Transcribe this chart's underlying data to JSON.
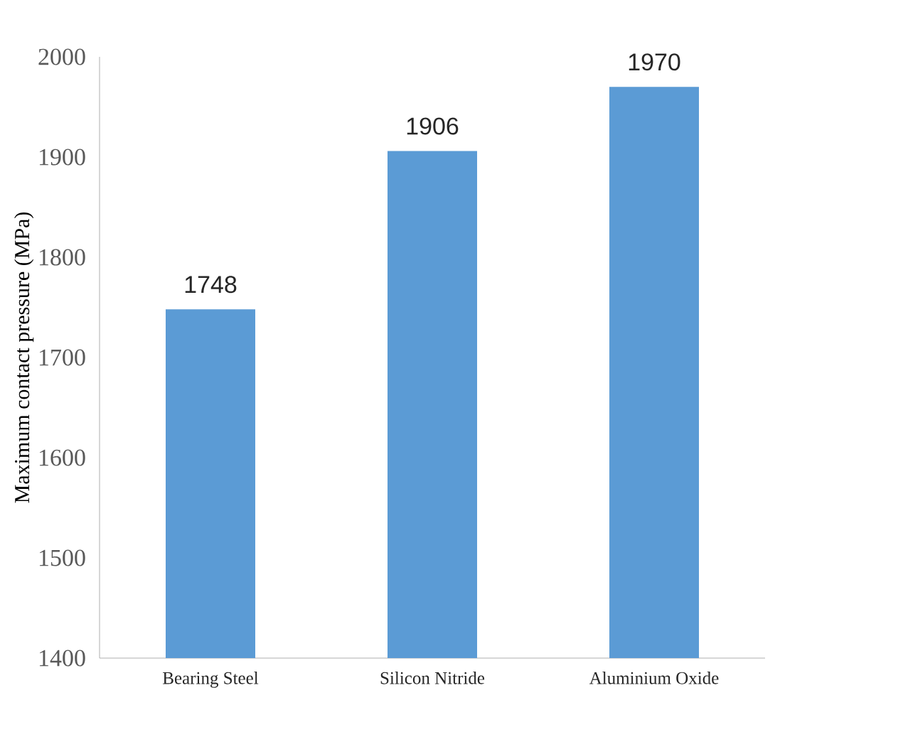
{
  "chart_data": {
    "type": "bar",
    "ylabel": "Maximum contact pressure (MPa)",
    "categories": [
      "Bearing Steel",
      "Silicon Nitride",
      "Aluminium Oxide"
    ],
    "values": [
      1748,
      1906,
      1970
    ],
    "color": "#5b9bd5",
    "ylim": [
      1400,
      2000
    ],
    "yticks": [
      1400,
      1500,
      1600,
      1700,
      1800,
      1900,
      2000
    ],
    "data_labels": true
  }
}
